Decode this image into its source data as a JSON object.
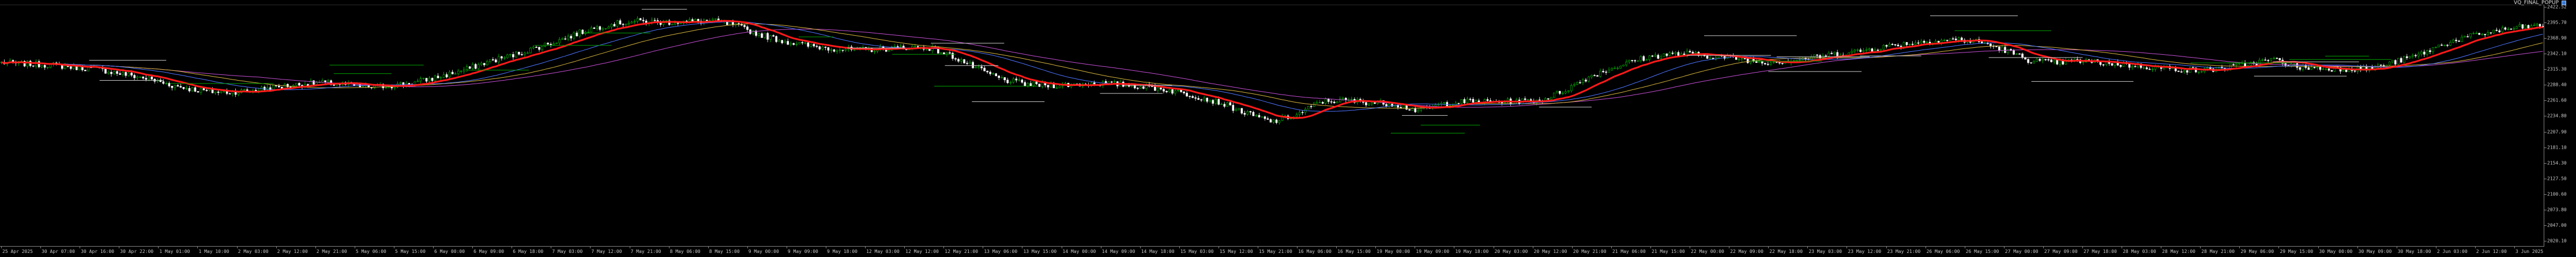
{
  "chart_label": "VQ_FINAL_POPUP",
  "colors": {
    "background": "#000000",
    "bull_candle": "#00c800",
    "bear_candle": "#ffffff",
    "ma_fast": "#ff1a1a",
    "ma_slow_1": "#4c73ff",
    "ma_slow_2": "#d4b23c",
    "ma_slow_3": "#c04cd0",
    "level_white": "#c8c8c8",
    "level_green": "#00a000"
  },
  "price_axis": [
    "2422.52",
    "2395.70",
    "2368.90",
    "2342.10",
    "2315.30",
    "2288.40",
    "2261.60",
    "2234.80",
    "2207.90",
    "2181.10",
    "2154.30",
    "2127.50",
    "2100.60",
    "2073.80",
    "2047.00",
    "2020.10"
  ],
  "time_axis": [
    "25 Apr 2025",
    "30 Apr 07:00",
    "30 Apr 16:00",
    "30 Apr 22:00",
    "1 May 01:00",
    "1 May 10:00",
    "2 May 03:00",
    "2 May 12:00",
    "2 May 21:00",
    "5 May 06:00",
    "5 May 15:00",
    "6 May 00:00",
    "6 May 09:00",
    "6 May 18:00",
    "7 May 03:00",
    "7 May 12:00",
    "7 May 21:00",
    "8 May 06:00",
    "8 May 15:00",
    "9 May 00:00",
    "9 May 09:00",
    "9 May 18:00",
    "12 May 03:00",
    "12 May 12:00",
    "12 May 21:00",
    "13 May 06:00",
    "13 May 15:00",
    "14 May 00:00",
    "14 May 09:00",
    "14 May 18:00",
    "15 May 03:00",
    "15 May 12:00",
    "15 May 21:00",
    "16 May 06:00",
    "16 May 15:00",
    "19 May 00:00",
    "19 May 09:00",
    "19 May 18:00",
    "20 May 03:00",
    "20 May 12:00",
    "20 May 21:00",
    "21 May 06:00",
    "21 May 15:00",
    "22 May 00:00",
    "22 May 09:00",
    "22 May 18:00",
    "23 May 03:00",
    "23 May 12:00",
    "23 May 21:00",
    "26 May 06:00",
    "26 May 15:00",
    "27 May 00:00",
    "27 May 09:00",
    "27 May 18:00",
    "28 May 03:00",
    "28 May 12:00",
    "28 May 21:00",
    "29 May 06:00",
    "29 May 15:00",
    "30 May 00:00",
    "30 May 09:00",
    "30 May 18:00",
    "2 Jun 03:00",
    "2 Jun 12:00",
    "3 Jun 2025"
  ],
  "chart_data": {
    "type": "candlestick",
    "symbol_label": "VQ_FINAL_POPUP",
    "y_range": [
      2010,
      2430
    ],
    "close_path": [
      2330,
      2328,
      2326,
      2322,
      2318,
      2310,
      2302,
      2290,
      2282,
      2278,
      2280,
      2286,
      2291,
      2295,
      2292,
      2287,
      2290,
      2296,
      2306,
      2318,
      2333,
      2344,
      2358,
      2372,
      2388,
      2398,
      2403,
      2401,
      2402,
      2404,
      2396,
      2380,
      2368,
      2360,
      2355,
      2352,
      2354,
      2357,
      2356,
      2340,
      2318,
      2300,
      2292,
      2290,
      2292,
      2294,
      2291,
      2287,
      2280,
      2270,
      2258,
      2240,
      2226,
      2238,
      2262,
      2264,
      2260,
      2258,
      2245,
      2258,
      2262,
      2261,
      2262,
      2264,
      2282,
      2306,
      2322,
      2336,
      2344,
      2346,
      2341,
      2338,
      2331,
      2333,
      2338,
      2345,
      2350,
      2358,
      2364,
      2368,
      2371,
      2366,
      2352,
      2334,
      2330,
      2333,
      2330,
      2326,
      2322,
      2319,
      2316,
      2321,
      2328,
      2336,
      2322,
      2320,
      2319,
      2320,
      2332,
      2345,
      2364,
      2376,
      2385,
      2392,
      2395
    ],
    "levels": [
      2360,
      2287,
      2245,
      2330,
      2400
    ]
  }
}
